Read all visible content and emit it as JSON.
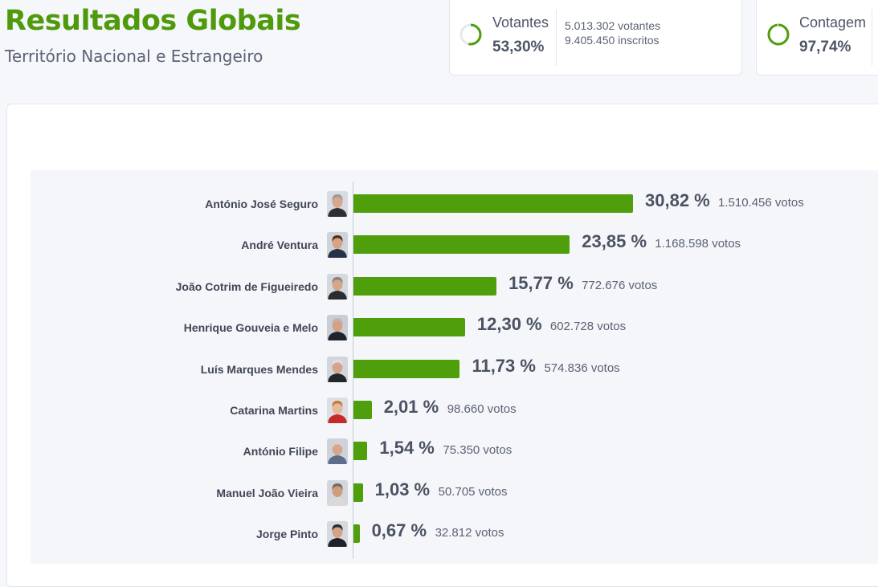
{
  "header": {
    "title": "Resultados Globais",
    "subtitle": "Território Nacional e Estrangeiro"
  },
  "stats": {
    "voters": {
      "label": "Votantes",
      "value": "53,30%",
      "progress": 0.533,
      "voters_text": "5.013.302 votantes",
      "registered_text": "9.405.450 inscritos"
    },
    "count": {
      "label": "Contagem",
      "value": "97,74%",
      "progress": 0.9774
    }
  },
  "colors": {
    "accent": "#4f9e0b",
    "title": "#4f9a0a",
    "text": "#4a5263"
  },
  "chart_data": {
    "type": "bar",
    "orientation": "horizontal",
    "categories": [
      "António José Seguro",
      "André Ventura",
      "João Cotrim de Figueiredo",
      "Henrique Gouveia e Melo",
      "Luís Marques Mendes",
      "Catarina Martins",
      "António Filipe",
      "Manuel João Vieira",
      "Jorge Pinto"
    ],
    "values": [
      30.82,
      23.85,
      15.77,
      12.3,
      11.73,
      2.01,
      1.54,
      1.03,
      0.67
    ],
    "value_labels": [
      "30,82 %",
      "23,85 %",
      "15,77 %",
      "12,30 %",
      "11,73 %",
      "2,01 %",
      "1,54 %",
      "1,03 %",
      "0,67 %"
    ],
    "votes": [
      "1.510.456 votos",
      "1.168.598 votos",
      "772.676 votos",
      "602.728 votos",
      "574.836 votos",
      "98.660 votos",
      "75.350 votos",
      "50.705 votos",
      "32.812 votos"
    ],
    "avatars": [
      {
        "hair": "#9a9a9a",
        "skin": "#d9a88c",
        "suit": "#2c2f36",
        "bg": "#d8dce2"
      },
      {
        "hair": "#4a3220",
        "skin": "#d8a384",
        "suit": "#24324a",
        "bg": "#cfd4da"
      },
      {
        "hair": "#8a8478",
        "skin": "#d6a58a",
        "suit": "#2a2c30",
        "bg": "#d5d9de"
      },
      {
        "hair": "#b8b8b8",
        "skin": "#d8a084",
        "suit": "#1d2430",
        "bg": "#c9ced6"
      },
      {
        "hair": "#e0e0e0",
        "skin": "#d6a488",
        "suit": "#23262d",
        "bg": "#d2d6dc"
      },
      {
        "hair": "#c47a3a",
        "skin": "#e6b89c",
        "suit": "#c62b2b",
        "bg": "#dcdfe4"
      },
      {
        "hair": "#d2d2d2",
        "skin": "#d8a68c",
        "suit": "#5b6e8c",
        "bg": "#cfd3d9"
      },
      {
        "hair": "#6e6a64",
        "skin": "#cf9c80",
        "suit": "#d9d9d9",
        "bg": "#d3d6da"
      },
      {
        "hair": "#2d2a28",
        "skin": "#d4a286",
        "suit": "#1f2126",
        "bg": "#d6d9de"
      }
    ],
    "xlim": [
      0,
      100
    ],
    "title": "",
    "xlabel": "",
    "ylabel": ""
  }
}
